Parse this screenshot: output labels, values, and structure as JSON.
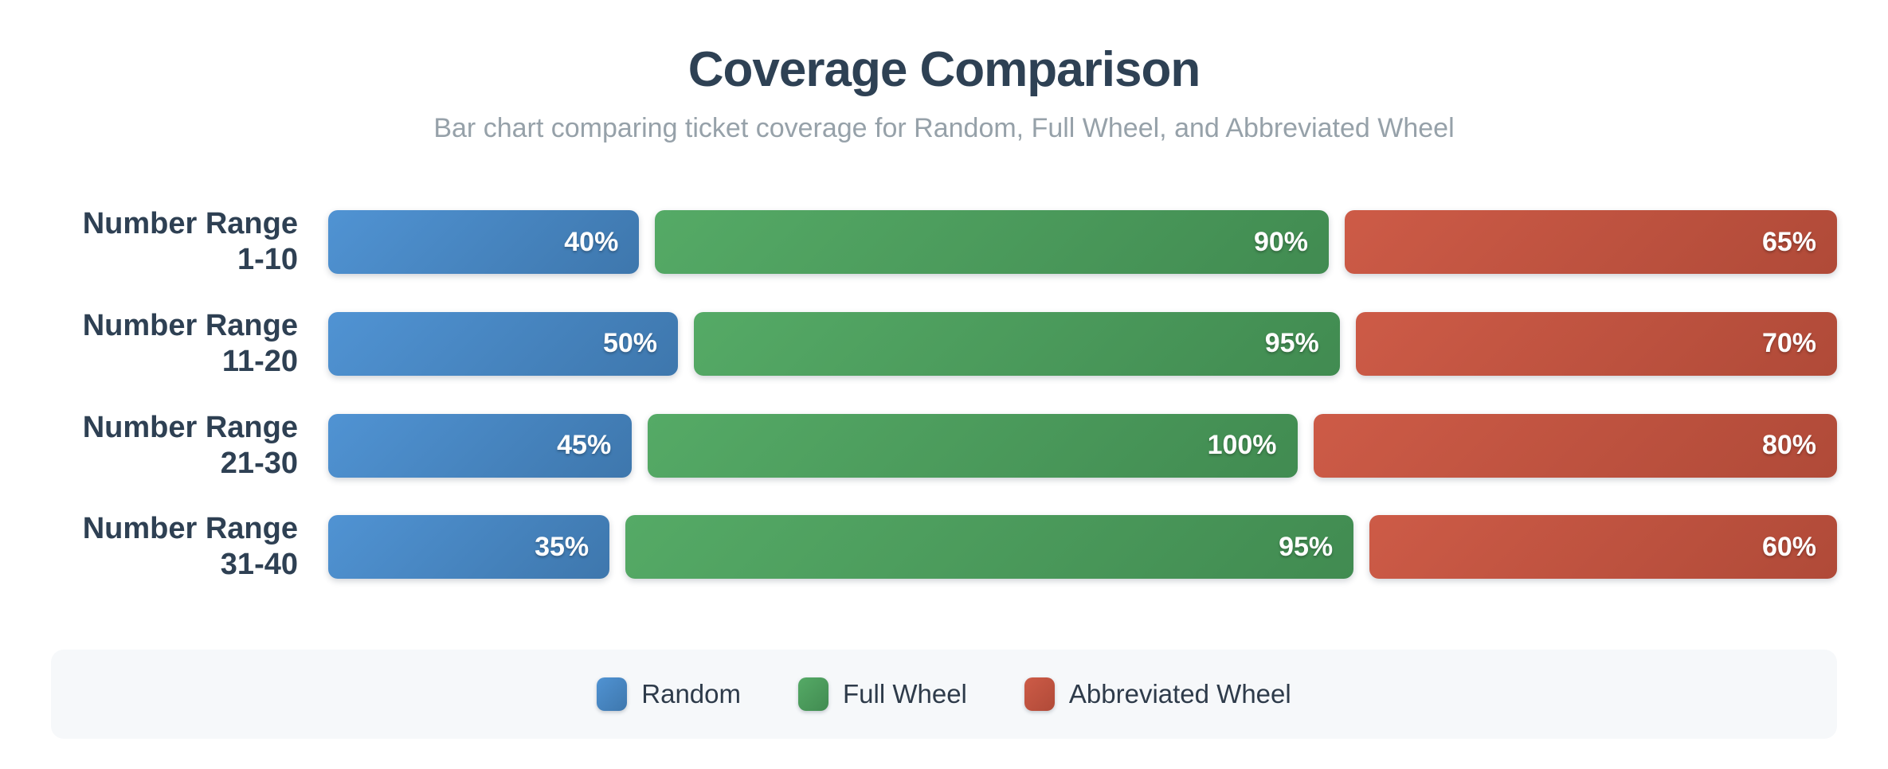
{
  "header": {
    "title": "Coverage Comparison",
    "subtitle": "Bar chart comparing ticket coverage for Random, Full Wheel, and Abbreviated Wheel"
  },
  "colors": {
    "page_background": "#ffffff",
    "title_text": "#2e4154",
    "subtitle_text": "#96a1a9",
    "category_text": "#2e4053",
    "bar_value_text": "#ffffff",
    "legend_background": "#f6f8fa",
    "legend_text": "#2e3b4a"
  },
  "chart_data": {
    "type": "bar",
    "orientation": "horizontal",
    "title": "Coverage Comparison",
    "subtitle": "Bar chart comparing ticket coverage for Random, Full Wheel, and Abbreviated Wheel",
    "value_unit": "%",
    "grid": false,
    "legend_position": "bottom",
    "layout_hint": "each row is a proportional segment strip; segment width is proportional to its percentage value",
    "categories": [
      "Number Range 1-10",
      "Number Range 11-20",
      "Number Range 21-30",
      "Number Range 31-40"
    ],
    "category_lines": [
      {
        "top": "Number Range",
        "bottom": "1-10"
      },
      {
        "top": "Number Range",
        "bottom": "11-20"
      },
      {
        "top": "Number Range",
        "bottom": "21-30"
      },
      {
        "top": "Number Range",
        "bottom": "31-40"
      }
    ],
    "series": [
      {
        "name": "Random",
        "color": "#4a8ac8",
        "color_light": "#5093d3",
        "color_dark": "#3e77ad",
        "values": [
          40,
          50,
          45,
          35
        ],
        "labels": [
          "40%",
          "50%",
          "45%",
          "35%"
        ]
      },
      {
        "name": "Full Wheel",
        "color": "#4f9f60",
        "color_light": "#55aa66",
        "color_dark": "#418b51",
        "values": [
          90,
          95,
          100,
          95
        ],
        "labels": [
          "90%",
          "95%",
          "100%",
          "95%"
        ]
      },
      {
        "name": "Abbreviated Wheel",
        "color": "#c5523f",
        "color_light": "#cd5b47",
        "color_dark": "#b04a38",
        "values": [
          65,
          70,
          80,
          60
        ],
        "labels": [
          "65%",
          "70%",
          "80%",
          "60%"
        ]
      }
    ]
  },
  "legend": {
    "items": [
      {
        "label": "Random"
      },
      {
        "label": "Full Wheel"
      },
      {
        "label": "Abbreviated Wheel"
      }
    ]
  }
}
